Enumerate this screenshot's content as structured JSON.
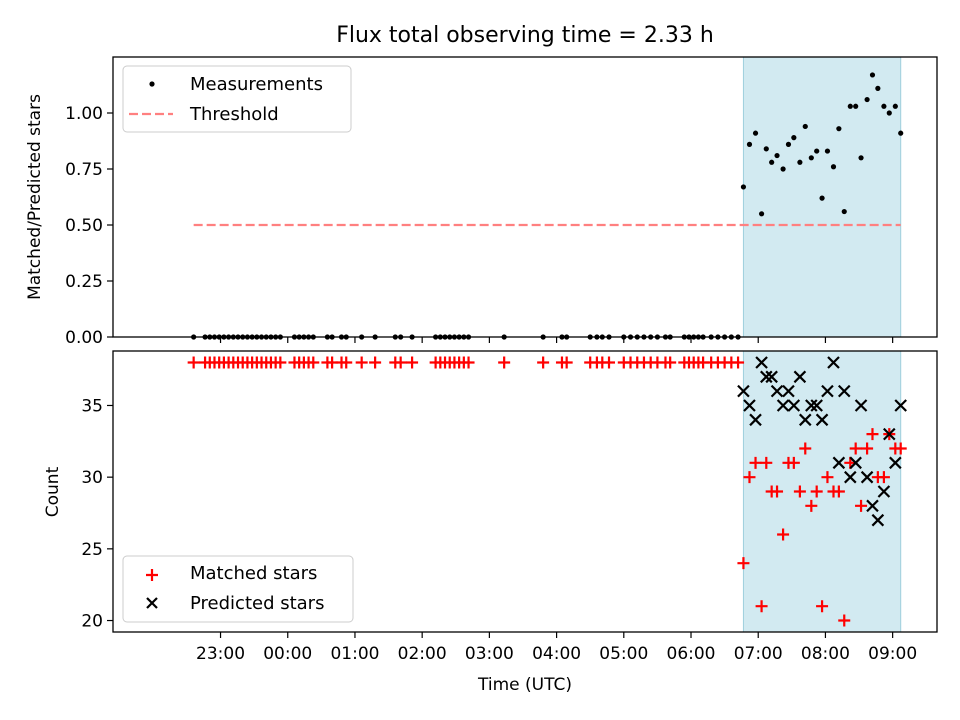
{
  "chart_data": [
    {
      "type": "scatter",
      "title": "Flux total observing time = 2.33 h",
      "xlabel": "",
      "ylabel": "Matched/Predicted stars",
      "ylim": [
        0,
        1.25
      ],
      "yticks": [
        0.0,
        0.25,
        0.5,
        0.75,
        1.0
      ],
      "ytick_labels": [
        "0.00",
        "0.25",
        "0.50",
        "0.75",
        "1.00"
      ],
      "highlight_span": {
        "x_start": 30.78,
        "x_end": 33.12,
        "color": "#add8e6"
      },
      "threshold": {
        "name": "Threshold",
        "value": 0.5,
        "x_start": 22.6,
        "x_end": 33.12,
        "color": "#ff8080"
      },
      "legend": [
        "Measurements",
        "Threshold"
      ],
      "legend_position": "upper-left",
      "series": [
        {
          "name": "Measurements",
          "marker": "dot",
          "color": "#000000",
          "x": [
            22.6,
            22.77,
            22.84,
            22.91,
            22.98,
            23.05,
            23.12,
            23.19,
            23.26,
            23.33,
            23.4,
            23.47,
            23.54,
            23.61,
            23.68,
            23.75,
            23.82,
            23.89,
            24.1,
            24.17,
            24.24,
            24.31,
            24.38,
            24.59,
            24.66,
            24.8,
            24.87,
            25.1,
            25.3,
            25.6,
            25.68,
            25.85,
            26.2,
            26.27,
            26.34,
            26.41,
            26.48,
            26.55,
            26.62,
            26.69,
            27.22,
            27.8,
            28.08,
            28.15,
            28.5,
            28.6,
            28.68,
            28.78,
            29.0,
            29.1,
            29.2,
            29.3,
            29.4,
            29.5,
            29.62,
            29.69,
            29.9,
            29.97,
            30.04,
            30.11,
            30.18,
            30.3,
            30.4,
            30.5,
            30.6,
            30.7,
            30.78,
            30.87,
            30.96,
            31.05,
            31.12,
            31.2,
            31.28,
            31.37,
            31.45,
            31.53,
            31.62,
            31.7,
            31.79,
            31.87,
            31.95,
            32.03,
            32.12,
            32.2,
            32.28,
            32.37,
            32.45,
            32.53,
            32.62,
            32.7,
            32.78,
            32.87,
            32.95,
            33.04,
            33.12
          ],
          "y": [
            0,
            0,
            0,
            0,
            0,
            0,
            0,
            0,
            0,
            0,
            0,
            0,
            0,
            0,
            0,
            0,
            0,
            0,
            0,
            0,
            0,
            0,
            0,
            0,
            0,
            0,
            0,
            0,
            0,
            0,
            0,
            0,
            0,
            0,
            0,
            0,
            0,
            0,
            0,
            0,
            0,
            0,
            0,
            0,
            0,
            0,
            0,
            0,
            0,
            0,
            0,
            0,
            0,
            0,
            0,
            0,
            0,
            0,
            0,
            0,
            0,
            0,
            0,
            0,
            0,
            0,
            0.67,
            0.86,
            0.91,
            0.55,
            0.84,
            0.78,
            0.81,
            0.75,
            0.86,
            0.89,
            0.78,
            0.94,
            0.8,
            0.83,
            0.62,
            0.83,
            0.76,
            0.93,
            0.56,
            1.03,
            1.03,
            0.8,
            1.06,
            1.17,
            1.11,
            1.03,
            1.0,
            1.03,
            0.91
          ]
        }
      ]
    },
    {
      "type": "scatter",
      "title": "",
      "xlabel": "Time (UTC)",
      "ylabel": "Count",
      "ylim": [
        19.2,
        38.8
      ],
      "yticks": [
        20,
        25,
        30,
        35
      ],
      "ytick_labels": [
        "20",
        "25",
        "30",
        "35"
      ],
      "x_range_hours": [
        21.4,
        33.66
      ],
      "xticks_hours": [
        23,
        24,
        25,
        26,
        27,
        28,
        29,
        30,
        31,
        32,
        33
      ],
      "xtick_labels": [
        "23:00",
        "00:00",
        "01:00",
        "02:00",
        "03:00",
        "04:00",
        "05:00",
        "06:00",
        "07:00",
        "08:00",
        "09:00"
      ],
      "highlight_span": {
        "x_start": 30.78,
        "x_end": 33.12,
        "color": "#add8e6"
      },
      "legend": [
        "Matched stars",
        "Predicted stars"
      ],
      "legend_position": "lower-left",
      "series": [
        {
          "name": "Matched stars",
          "marker": "plus",
          "color": "#ff0000",
          "x": [
            22.6,
            22.77,
            22.84,
            22.91,
            22.98,
            23.05,
            23.12,
            23.19,
            23.26,
            23.33,
            23.4,
            23.47,
            23.54,
            23.61,
            23.68,
            23.75,
            23.82,
            23.89,
            24.1,
            24.17,
            24.24,
            24.31,
            24.38,
            24.59,
            24.66,
            24.8,
            24.87,
            25.1,
            25.3,
            25.6,
            25.68,
            25.85,
            26.2,
            26.27,
            26.34,
            26.41,
            26.48,
            26.55,
            26.62,
            26.69,
            27.22,
            27.8,
            28.08,
            28.15,
            28.5,
            28.6,
            28.68,
            28.78,
            29.0,
            29.1,
            29.2,
            29.3,
            29.4,
            29.5,
            29.62,
            29.69,
            29.9,
            29.97,
            30.04,
            30.11,
            30.18,
            30.3,
            30.4,
            30.5,
            30.6,
            30.7,
            30.78,
            30.87,
            30.96,
            31.05,
            31.12,
            31.2,
            31.28,
            31.37,
            31.45,
            31.53,
            31.62,
            31.7,
            31.79,
            31.87,
            31.95,
            32.03,
            32.12,
            32.2,
            32.28,
            32.37,
            32.45,
            32.53,
            32.62,
            32.7,
            32.78,
            32.87,
            32.95,
            33.04,
            33.12
          ],
          "y": [
            38,
            38,
            38,
            38,
            38,
            38,
            38,
            38,
            38,
            38,
            38,
            38,
            38,
            38,
            38,
            38,
            38,
            38,
            38,
            38,
            38,
            38,
            38,
            38,
            38,
            38,
            38,
            38,
            38,
            38,
            38,
            38,
            38,
            38,
            38,
            38,
            38,
            38,
            38,
            38,
            38,
            38,
            38,
            38,
            38,
            38,
            38,
            38,
            38,
            38,
            38,
            38,
            38,
            38,
            38,
            38,
            38,
            38,
            38,
            38,
            38,
            38,
            38,
            38,
            38,
            38,
            24,
            30,
            31,
            21,
            31,
            29,
            29,
            26,
            31,
            31,
            29,
            32,
            28,
            29,
            21,
            30,
            29,
            29,
            20,
            31,
            32,
            28,
            32,
            33,
            30,
            30,
            33,
            32,
            32
          ]
        },
        {
          "name": "Predicted stars",
          "marker": "x",
          "color": "#000000",
          "x": [
            30.78,
            30.87,
            30.96,
            31.05,
            31.12,
            31.2,
            31.28,
            31.37,
            31.45,
            31.53,
            31.62,
            31.7,
            31.79,
            31.87,
            31.95,
            32.03,
            32.12,
            32.2,
            32.28,
            32.37,
            32.45,
            32.53,
            32.62,
            32.7,
            32.78,
            32.87,
            32.95,
            33.04,
            33.12
          ],
          "y": [
            36,
            35,
            34,
            38,
            37,
            37,
            36,
            35,
            36,
            35,
            37,
            34,
            35,
            35,
            34,
            36,
            38,
            31,
            36,
            30,
            31,
            35,
            30,
            28,
            27,
            29,
            33,
            31,
            35
          ]
        }
      ]
    }
  ]
}
